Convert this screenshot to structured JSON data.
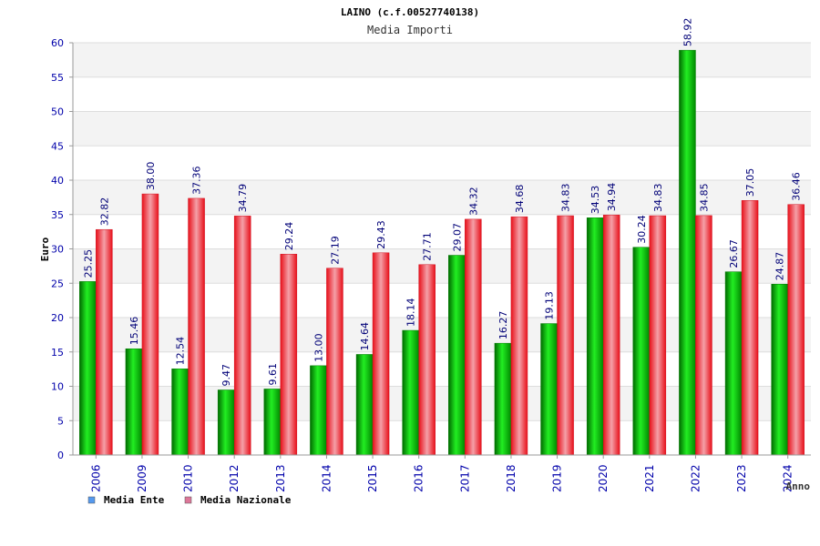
{
  "chart_data": {
    "type": "bar",
    "title": "LAINO (c.f.00527740138)",
    "subtitle": "Media Importi",
    "xlabel": "Anno",
    "ylabel": "Euro",
    "ylim": [
      0,
      60
    ],
    "yticks": [
      0,
      5,
      10,
      15,
      20,
      25,
      30,
      35,
      40,
      45,
      50,
      55,
      60
    ],
    "grid": true,
    "legend_position": "bottom-left",
    "categories": [
      "2006",
      "2009",
      "2010",
      "2012",
      "2013",
      "2014",
      "2015",
      "2016",
      "2017",
      "2018",
      "2019",
      "2020",
      "2021",
      "2022",
      "2023",
      "2024"
    ],
    "series": [
      {
        "name": "Media Ente",
        "color": "#00b000",
        "legend_color": "#5599ee",
        "values": [
          25.25,
          15.46,
          12.54,
          9.47,
          9.61,
          13.0,
          14.64,
          18.14,
          29.07,
          16.27,
          19.13,
          34.53,
          30.24,
          58.92,
          26.67,
          24.87
        ],
        "labels": [
          "25.25",
          "15.46",
          "12.54",
          "9.47",
          "9.61",
          "13.00",
          "14.64",
          "18.14",
          "29.07",
          "16.27",
          "19.13",
          "34.53",
          "30.24",
          "58.92",
          "26.67",
          "24.87"
        ]
      },
      {
        "name": "Media Nazionale",
        "color": "#e8101a",
        "legend_color": "#dd7799",
        "values": [
          32.82,
          38.0,
          37.36,
          34.79,
          29.24,
          27.19,
          29.43,
          27.71,
          34.32,
          34.68,
          34.83,
          34.94,
          34.83,
          34.85,
          37.05,
          36.46
        ],
        "labels": [
          "32.82",
          "38.00",
          "37.36",
          "34.79",
          "29.24",
          "27.19",
          "29.43",
          "27.71",
          "34.32",
          "34.68",
          "34.83",
          "34.94",
          "34.83",
          "34.85",
          "37.05",
          "36.46"
        ]
      }
    ]
  }
}
